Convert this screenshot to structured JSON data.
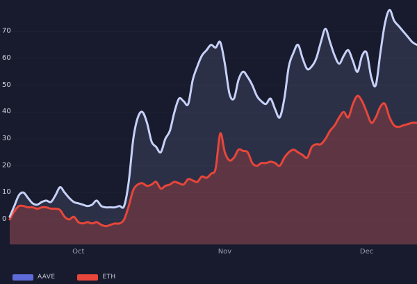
{
  "chart_data": {
    "type": "line",
    "title": "",
    "ylabel": "",
    "xlabel": "",
    "ylim": [
      -9.3,
      81.7
    ],
    "grid": false,
    "legend_position": "bottom-left",
    "y_ticks": [
      0,
      10,
      20,
      30,
      40,
      50,
      60,
      70
    ],
    "x_ticks": [
      {
        "label": "Oct",
        "index": 15
      },
      {
        "label": "Nov",
        "index": 47
      },
      {
        "label": "Dec",
        "index": 78
      }
    ],
    "series": [
      {
        "name": "AAVE",
        "color": "#c7d1f7",
        "fill": "rgba(166,180,235,0.14)",
        "values": [
          1,
          5,
          9,
          10,
          8,
          6,
          5.5,
          6.5,
          7,
          6.5,
          9,
          12,
          10,
          8,
          6.5,
          6,
          5.5,
          5,
          5.5,
          7,
          5,
          4.5,
          4.5,
          4.5,
          5,
          5,
          14,
          30,
          38,
          40,
          36,
          29,
          27,
          25,
          30,
          33,
          40,
          45,
          44,
          43,
          52,
          57,
          61,
          63,
          65,
          64,
          66,
          58,
          47,
          45,
          52,
          55,
          53,
          50,
          46,
          44,
          43,
          45,
          41,
          38,
          45,
          57,
          62,
          65,
          60,
          56,
          57,
          60,
          66,
          71,
          66,
          61,
          58,
          61,
          63,
          59,
          55,
          61,
          62,
          53,
          50,
          62,
          73,
          78,
          74,
          72,
          70,
          68,
          66,
          65
        ]
      },
      {
        "name": "ETH",
        "color": "#e8463a",
        "fill": "rgba(232,70,58,0.27)",
        "values": [
          0,
          3,
          5,
          5,
          4.5,
          4.5,
          4,
          4.5,
          4.5,
          4,
          4,
          3.5,
          1,
          0,
          1,
          -1,
          -1.5,
          -1,
          -1.5,
          -1,
          -2,
          -2.5,
          -2,
          -1.5,
          -1.5,
          0,
          5,
          11,
          13,
          13.5,
          12.5,
          13,
          14,
          11.5,
          12.5,
          13,
          14,
          13.5,
          13,
          15,
          14.5,
          14,
          16,
          15.5,
          17,
          19,
          32,
          25,
          22,
          23,
          26,
          25.5,
          25,
          21,
          20,
          21,
          21,
          21.5,
          21,
          20,
          23,
          25,
          26,
          25,
          24,
          23,
          27,
          28,
          28,
          30,
          33,
          35,
          38,
          40,
          38,
          43,
          46,
          44,
          40,
          36,
          38,
          42,
          43,
          38,
          35,
          34.5,
          35,
          35.5,
          36,
          36
        ]
      }
    ]
  },
  "legend": {
    "items": [
      {
        "label": "AAVE",
        "color": "#5f6bd8"
      },
      {
        "label": "ETH",
        "color": "#e8463a"
      }
    ]
  },
  "colors": {
    "background": "#181b2d",
    "y_label": "#d3d6e3",
    "x_label": "#9ba1b7"
  }
}
